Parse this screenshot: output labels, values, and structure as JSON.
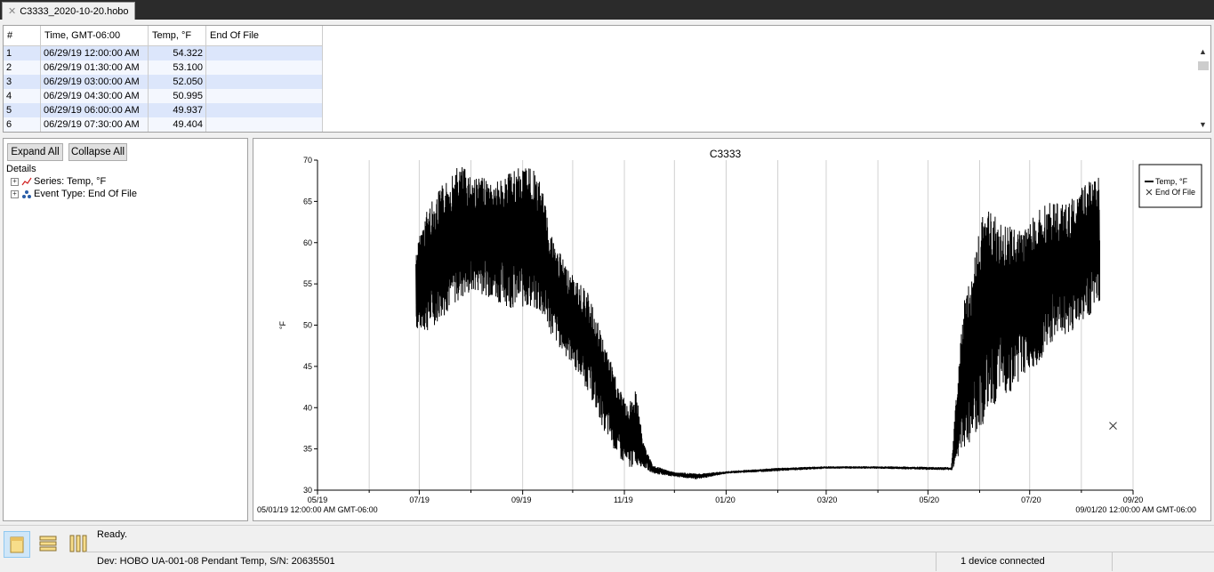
{
  "tab": {
    "title": "C3333_2020-10-20.hobo"
  },
  "table": {
    "headers": [
      "#",
      "Time, GMT-06:00",
      "Temp, °F",
      "End Of File"
    ],
    "rows": [
      [
        "1",
        "06/29/19 12:00:00 AM",
        "54.322",
        ""
      ],
      [
        "2",
        "06/29/19 01:30:00 AM",
        "53.100",
        ""
      ],
      [
        "3",
        "06/29/19 03:00:00 AM",
        "52.050",
        ""
      ],
      [
        "4",
        "06/29/19 04:30:00 AM",
        "50.995",
        ""
      ],
      [
        "5",
        "06/29/19 06:00:00 AM",
        "49.937",
        ""
      ],
      [
        "6",
        "06/29/19 07:30:00 AM",
        "49.404",
        ""
      ]
    ]
  },
  "details": {
    "expand_label": "Expand All",
    "collapse_label": "Collapse All",
    "root_label": "Details",
    "items": [
      "Series: Temp, °F",
      "Event Type: End Of File"
    ]
  },
  "status": {
    "ready": "Ready.",
    "device": "Dev: HOBO UA-001-08 Pendant Temp, S/N: 20635501",
    "connected": "1 device connected"
  },
  "chart_data": {
    "type": "line",
    "title": "C3333",
    "ylabel": "°F",
    "xlabel": "",
    "ylim": [
      30,
      70
    ],
    "yticks": [
      30,
      35,
      40,
      45,
      50,
      55,
      60,
      65,
      70
    ],
    "xlim": [
      "2019-05-01",
      "2020-09-01"
    ],
    "xticks": [
      "05/19",
      "07/19",
      "09/19",
      "11/19",
      "01/20",
      "03/20",
      "05/20",
      "07/20",
      "09/20"
    ],
    "x_start_label": "05/01/19 12:00:00 AM GMT-06:00",
    "x_end_label": "09/01/20 12:00:00 AM GMT-06:00",
    "grid": "vertical",
    "legend_position": "top-right",
    "series": [
      {
        "name": "Temp, °F",
        "color": "#000000",
        "envelope": [
          {
            "x": "2019-06-29",
            "min": 49.4,
            "max": 59.0
          },
          {
            "x": "2019-07-05",
            "min": 49.0,
            "max": 64.0
          },
          {
            "x": "2019-07-15",
            "min": 51.0,
            "max": 67.0
          },
          {
            "x": "2019-07-25",
            "min": 53.0,
            "max": 69.5
          },
          {
            "x": "2019-08-05",
            "min": 54.0,
            "max": 68.0
          },
          {
            "x": "2019-08-15",
            "min": 53.0,
            "max": 67.5
          },
          {
            "x": "2019-08-25",
            "min": 52.0,
            "max": 68.5
          },
          {
            "x": "2019-09-05",
            "min": 52.0,
            "max": 69.8
          },
          {
            "x": "2019-09-12",
            "min": 51.0,
            "max": 67.0
          },
          {
            "x": "2019-09-20",
            "min": 48.0,
            "max": 60.0
          },
          {
            "x": "2019-10-01",
            "min": 45.0,
            "max": 56.0
          },
          {
            "x": "2019-10-10",
            "min": 42.0,
            "max": 54.0
          },
          {
            "x": "2019-10-20",
            "min": 37.0,
            "max": 48.0
          },
          {
            "x": "2019-10-28",
            "min": 34.0,
            "max": 43.0
          },
          {
            "x": "2019-11-03",
            "min": 32.5,
            "max": 40.0
          },
          {
            "x": "2019-11-08",
            "min": 33.0,
            "max": 42.5
          },
          {
            "x": "2019-11-12",
            "min": 32.8,
            "max": 36.0
          },
          {
            "x": "2019-11-18",
            "min": 32.0,
            "max": 33.0
          },
          {
            "x": "2019-12-01",
            "min": 31.6,
            "max": 32.2
          },
          {
            "x": "2019-12-15",
            "min": 31.3,
            "max": 32.0
          },
          {
            "x": "2020-01-01",
            "min": 32.0,
            "max": 32.3
          },
          {
            "x": "2020-02-01",
            "min": 32.3,
            "max": 32.7
          },
          {
            "x": "2020-03-01",
            "min": 32.6,
            "max": 32.9
          },
          {
            "x": "2020-04-01",
            "min": 32.6,
            "max": 32.9
          },
          {
            "x": "2020-05-15",
            "min": 32.4,
            "max": 32.8
          },
          {
            "x": "2020-05-22",
            "min": 35.0,
            "max": 53.0
          },
          {
            "x": "2020-05-27",
            "min": 36.0,
            "max": 56.0
          },
          {
            "x": "2020-06-03",
            "min": 38.0,
            "max": 64.5
          },
          {
            "x": "2020-06-12",
            "min": 41.0,
            "max": 63.0
          },
          {
            "x": "2020-06-20",
            "min": 42.0,
            "max": 62.0
          },
          {
            "x": "2020-06-28",
            "min": 44.0,
            "max": 62.0
          },
          {
            "x": "2020-07-05",
            "min": 45.0,
            "max": 64.0
          },
          {
            "x": "2020-07-15",
            "min": 48.0,
            "max": 65.0
          },
          {
            "x": "2020-07-25",
            "min": 49.0,
            "max": 65.0
          },
          {
            "x": "2020-08-05",
            "min": 51.0,
            "max": 67.5
          },
          {
            "x": "2020-08-12",
            "min": 52.5,
            "max": 68.0
          }
        ]
      }
    ],
    "events": [
      {
        "name": "End Of File",
        "x": "2020-08-20",
        "y": 37.8,
        "marker": "x"
      }
    ]
  }
}
